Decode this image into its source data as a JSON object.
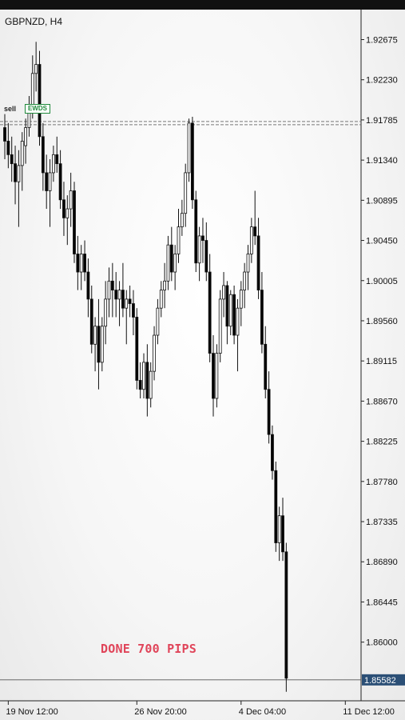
{
  "chart_data": {
    "type": "candlestick",
    "title": "GBPNZD, H4",
    "badge": "EWDS",
    "sell_tag": "sell",
    "annotation": "DONE 700 PIPS",
    "entry_level": 1.9175,
    "current_price": 1.85582,
    "current_price_label": "1.85582",
    "ylim": [
      1.8535,
      1.9283
    ],
    "y_ticks": [
      "1.92675",
      "1.92230",
      "1.91785",
      "1.91340",
      "1.90895",
      "1.90450",
      "1.90005",
      "1.89560",
      "1.89115",
      "1.88670",
      "1.88225",
      "1.87780",
      "1.87335",
      "1.86890",
      "1.86445",
      "1.86000"
    ],
    "x_ticks": [
      {
        "label": "19 Nov 12:00",
        "index": 1
      },
      {
        "label": "26 Nov 20:00",
        "index": 38
      },
      {
        "label": "4 Dec 04:00",
        "index": 68
      },
      {
        "label": "11 Dec 12:00",
        "index": 98
      }
    ],
    "candles": [
      [
        1.917,
        1.9185,
        1.9135,
        1.9155
      ],
      [
        1.9155,
        1.9175,
        1.9125,
        1.914
      ],
      [
        1.914,
        1.916,
        1.911,
        1.913
      ],
      [
        1.913,
        1.915,
        1.9085,
        1.911
      ],
      [
        1.911,
        1.9145,
        1.906,
        1.9128
      ],
      [
        1.9128,
        1.9165,
        1.91,
        1.9155
      ],
      [
        1.915,
        1.918,
        1.913,
        1.917
      ],
      [
        1.917,
        1.9205,
        1.916,
        1.9195
      ],
      [
        1.9195,
        1.925,
        1.918,
        1.923
      ],
      [
        1.923,
        1.9265,
        1.921,
        1.924
      ],
      [
        1.924,
        1.9255,
        1.915,
        1.916
      ],
      [
        1.916,
        1.9175,
        1.91,
        1.912
      ],
      [
        1.912,
        1.914,
        1.908,
        1.91
      ],
      [
        1.91,
        1.9135,
        1.906,
        1.912
      ],
      [
        1.912,
        1.915,
        1.911,
        1.914
      ],
      [
        1.914,
        1.916,
        1.912,
        1.913
      ],
      [
        1.913,
        1.9145,
        1.908,
        1.909
      ],
      [
        1.909,
        1.911,
        1.905,
        1.907
      ],
      [
        1.907,
        1.9095,
        1.904,
        1.908
      ],
      [
        1.908,
        1.912,
        1.906,
        1.91
      ],
      [
        1.91,
        1.911,
        1.902,
        1.903
      ],
      [
        1.903,
        1.905,
        1.899,
        1.901
      ],
      [
        1.901,
        1.904,
        1.899,
        1.903
      ],
      [
        1.903,
        1.9045,
        1.9,
        1.901
      ],
      [
        1.901,
        1.9025,
        1.896,
        1.898
      ],
      [
        1.898,
        1.8995,
        1.892,
        1.893
      ],
      [
        1.893,
        1.896,
        1.89,
        1.895
      ],
      [
        1.895,
        1.898,
        1.888,
        1.891
      ],
      [
        1.891,
        1.896,
        1.89,
        1.895
      ],
      [
        1.895,
        1.9,
        1.893,
        1.898
      ],
      [
        1.898,
        1.9015,
        1.896,
        1.9
      ],
      [
        1.9,
        1.902,
        1.896,
        1.899
      ],
      [
        1.899,
        1.901,
        1.896,
        1.898
      ],
      [
        1.898,
        1.9,
        1.895,
        1.899
      ],
      [
        1.899,
        1.902,
        1.896,
        1.897
      ],
      [
        1.897,
        1.899,
        1.893,
        1.898
      ],
      [
        1.898,
        1.8995,
        1.896,
        1.8975
      ],
      [
        1.8975,
        1.899,
        1.894,
        1.896
      ],
      [
        1.896,
        1.897,
        1.888,
        1.889
      ],
      [
        1.889,
        1.891,
        1.887,
        1.888
      ],
      [
        1.888,
        1.892,
        1.887,
        1.891
      ],
      [
        1.891,
        1.893,
        1.885,
        1.887
      ],
      [
        1.887,
        1.891,
        1.886,
        1.89
      ],
      [
        1.89,
        1.895,
        1.889,
        1.894
      ],
      [
        1.894,
        1.898,
        1.893,
        1.897
      ],
      [
        1.897,
        1.9,
        1.896,
        1.899
      ],
      [
        1.899,
        1.902,
        1.897,
        1.9
      ],
      [
        1.9,
        1.905,
        1.899,
        1.904
      ],
      [
        1.904,
        1.906,
        1.9,
        1.901
      ],
      [
        1.901,
        1.904,
        1.899,
        1.903
      ],
      [
        1.903,
        1.908,
        1.902,
        1.906
      ],
      [
        1.906,
        1.909,
        1.905,
        1.9075
      ],
      [
        1.9075,
        1.913,
        1.906,
        1.912
      ],
      [
        1.912,
        1.918,
        1.911,
        1.9175
      ],
      [
        1.9175,
        1.9182,
        1.908,
        1.909
      ],
      [
        1.909,
        1.91,
        1.901,
        1.902
      ],
      [
        1.902,
        1.906,
        1.9,
        1.905
      ],
      [
        1.905,
        1.907,
        1.902,
        1.9045
      ],
      [
        1.9045,
        1.9065,
        1.9,
        1.901
      ],
      [
        1.901,
        1.903,
        1.891,
        1.892
      ],
      [
        1.892,
        1.894,
        1.885,
        1.887
      ],
      [
        1.887,
        1.893,
        1.886,
        1.892
      ],
      [
        1.892,
        1.899,
        1.891,
        1.898
      ],
      [
        1.898,
        1.901,
        1.896,
        1.8995
      ],
      [
        1.8995,
        1.9,
        1.893,
        1.895
      ],
      [
        1.895,
        1.899,
        1.894,
        1.8985
      ],
      [
        1.8985,
        1.8995,
        1.893,
        1.894
      ],
      [
        1.894,
        1.898,
        1.89,
        1.897
      ],
      [
        1.897,
        1.9,
        1.895,
        1.899
      ],
      [
        1.899,
        1.902,
        1.897,
        1.901
      ],
      [
        1.901,
        1.904,
        1.899,
        1.903
      ],
      [
        1.903,
        1.907,
        1.902,
        1.906
      ],
      [
        1.906,
        1.91,
        1.904,
        1.905
      ],
      [
        1.905,
        1.907,
        1.898,
        1.899
      ],
      [
        1.899,
        1.901,
        1.892,
        1.893
      ],
      [
        1.893,
        1.895,
        1.887,
        1.888
      ],
      [
        1.888,
        1.89,
        1.882,
        1.883
      ],
      [
        1.883,
        1.884,
        1.878,
        1.879
      ],
      [
        1.879,
        1.88,
        1.87,
        1.871
      ],
      [
        1.871,
        1.875,
        1.869,
        1.874
      ],
      [
        1.874,
        1.876,
        1.869,
        1.87
      ],
      [
        1.87,
        1.871,
        1.856,
        1.856
      ]
    ]
  }
}
